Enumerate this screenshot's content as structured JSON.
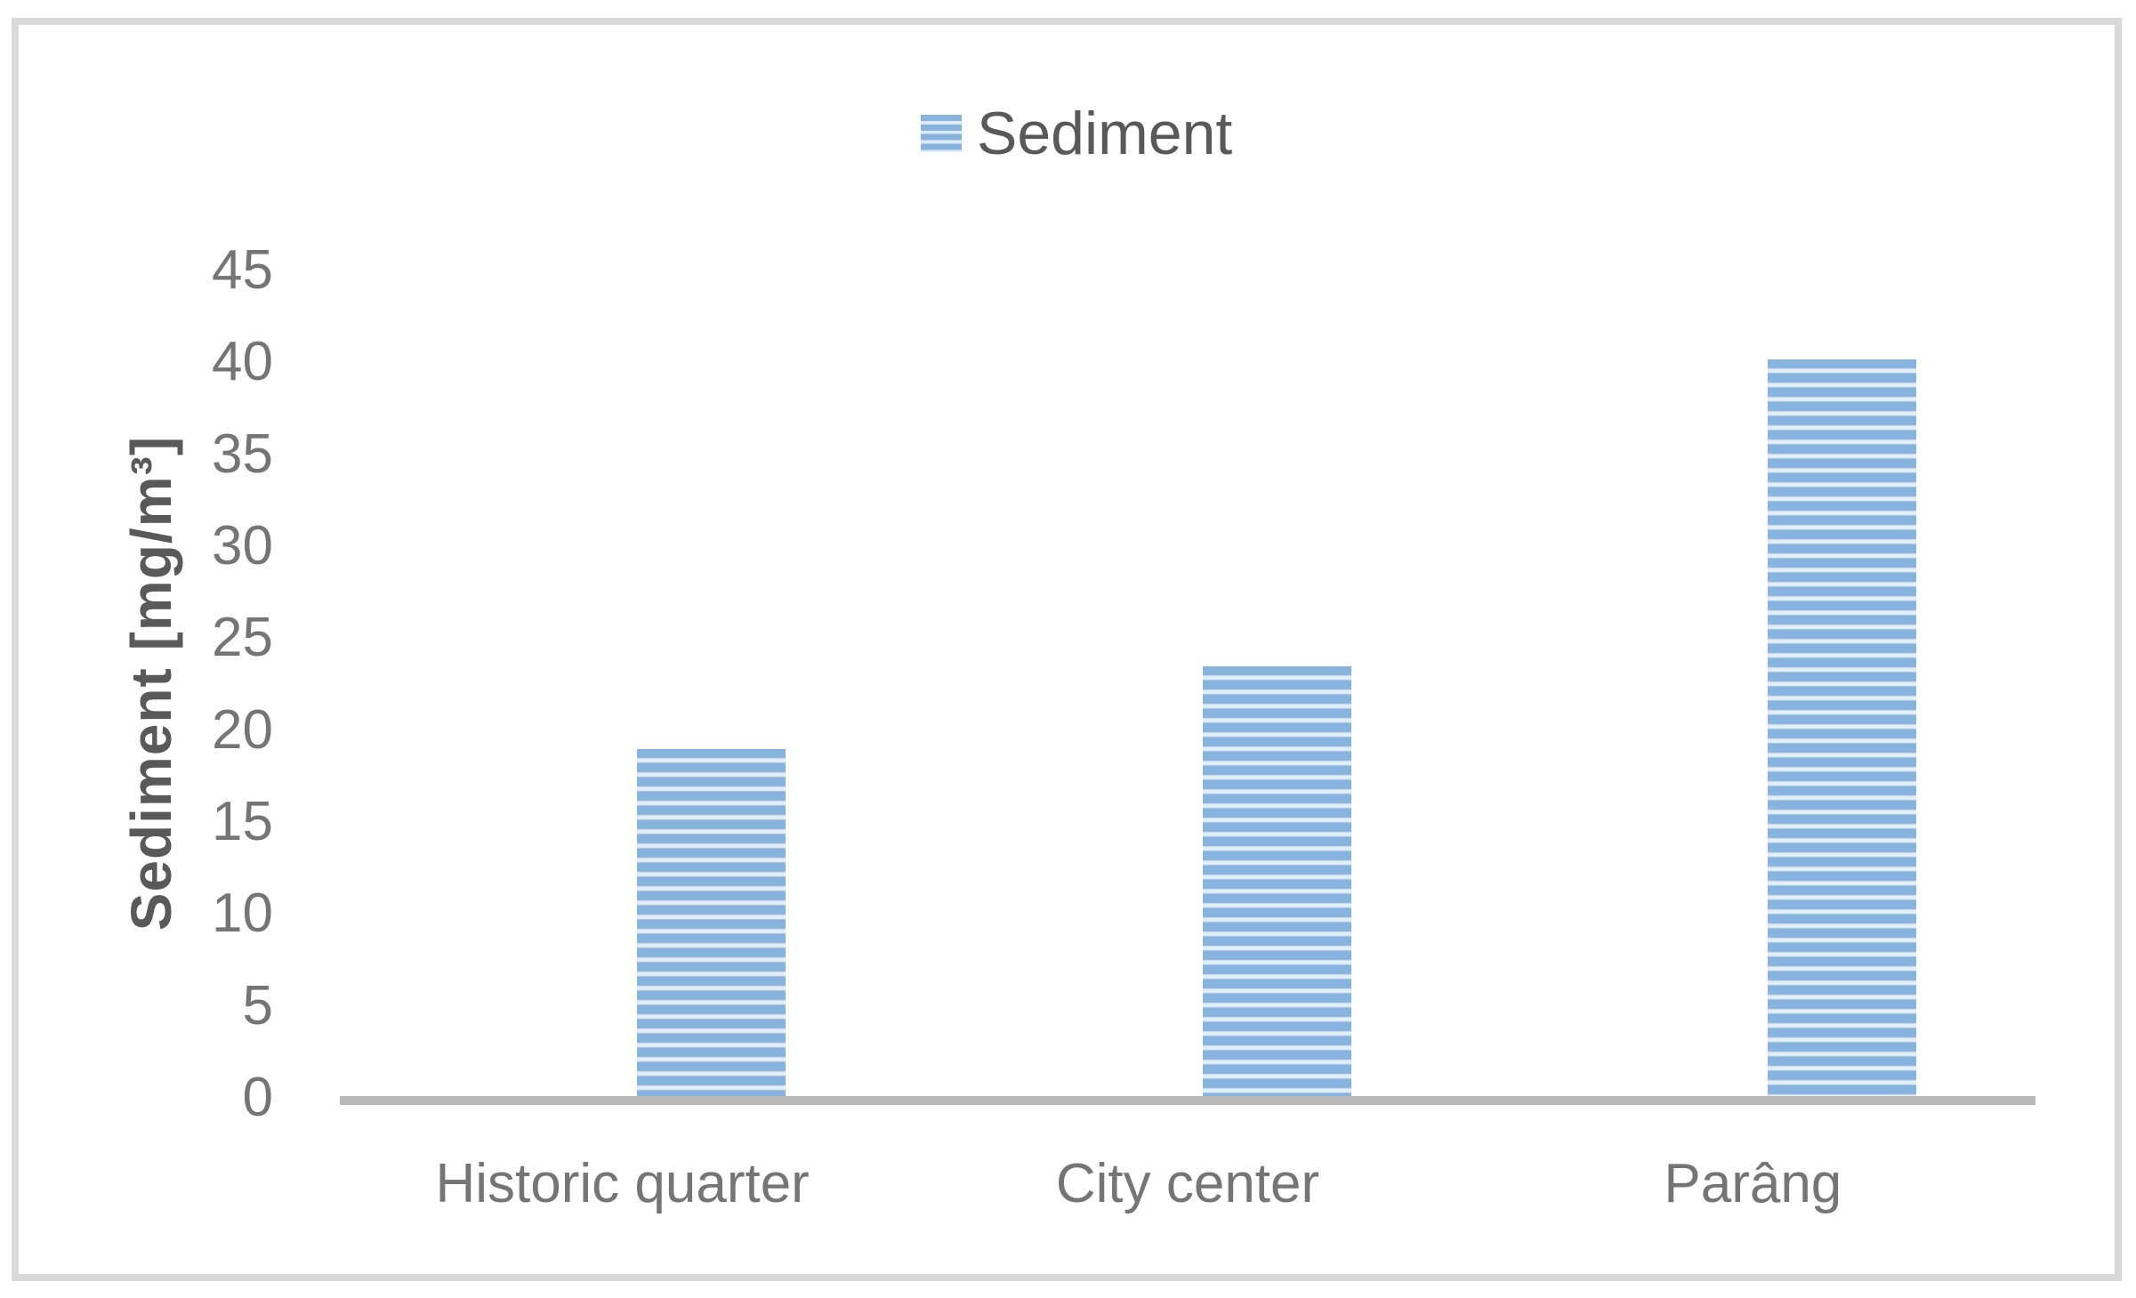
{
  "chart_data": {
    "type": "bar",
    "title": "",
    "categories": [
      "Historic quarter",
      "City center",
      "Parâng"
    ],
    "series": [
      {
        "name": "Sediment",
        "values": [
          19,
          23.5,
          40.2
        ]
      }
    ],
    "xlabel": "",
    "ylabel": "Sediment [mg/m³]",
    "ylim": [
      0,
      45
    ],
    "yticks": [
      0,
      5,
      10,
      15,
      20,
      25,
      30,
      35,
      40,
      45
    ],
    "grid": false,
    "legend_position": "top-center",
    "bar_pattern": "horizontal-stripes"
  },
  "colors": {
    "bar_stripe_blue": "#89b3df",
    "bar_stripe_light": "#e4eef8",
    "axis_line": "#b9b9b9",
    "frame_border": "#d9d9d9",
    "tick_text": "#757575",
    "title_text": "#595959"
  }
}
